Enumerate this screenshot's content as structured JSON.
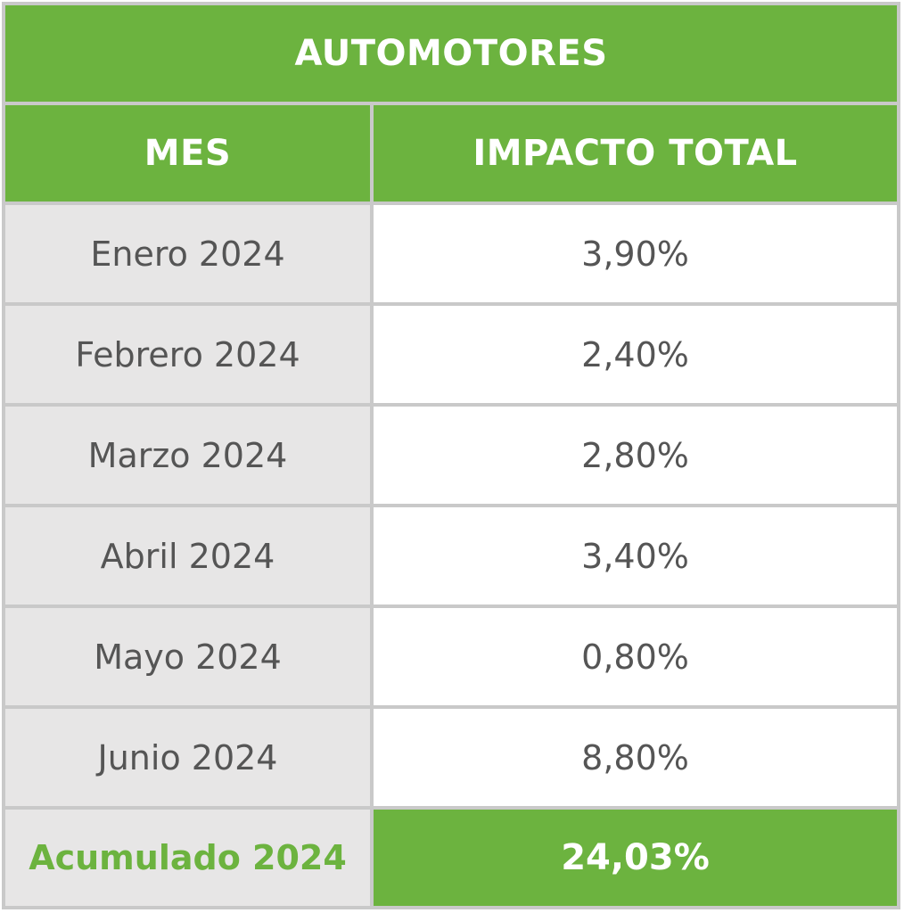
{
  "table": {
    "title": "AUTOMOTORES",
    "headers": [
      "MES",
      "IMPACTO TOTAL"
    ],
    "rows": [
      {
        "month": "Enero 2024",
        "impact": "3,90%"
      },
      {
        "month": "Febrero 2024",
        "impact": "2,40%"
      },
      {
        "month": "Marzo 2024",
        "impact": "2,80%"
      },
      {
        "month": "Abril 2024",
        "impact": "3,40%"
      },
      {
        "month": "Mayo 2024",
        "impact": "0,80%"
      },
      {
        "month": "Junio 2024",
        "impact": "8,80%"
      }
    ],
    "total": {
      "label": "Acumulado 2024",
      "value": "24,03%"
    }
  },
  "colors": {
    "accent_green": "#6cb33f",
    "label_grey_bg": "#e7e6e6",
    "grid_line": "#c9c9c9",
    "text_grey": "#555555"
  },
  "chart_data": {
    "type": "table",
    "title": "AUTOMOTORES",
    "columns": [
      "MES",
      "IMPACTO TOTAL"
    ],
    "categories": [
      "Enero 2024",
      "Febrero 2024",
      "Marzo 2024",
      "Abril 2024",
      "Mayo 2024",
      "Junio 2024"
    ],
    "values": [
      3.9,
      2.4,
      2.8,
      3.4,
      0.8,
      8.8
    ],
    "total": {
      "label": "Acumulado 2024",
      "value": 24.03
    }
  }
}
